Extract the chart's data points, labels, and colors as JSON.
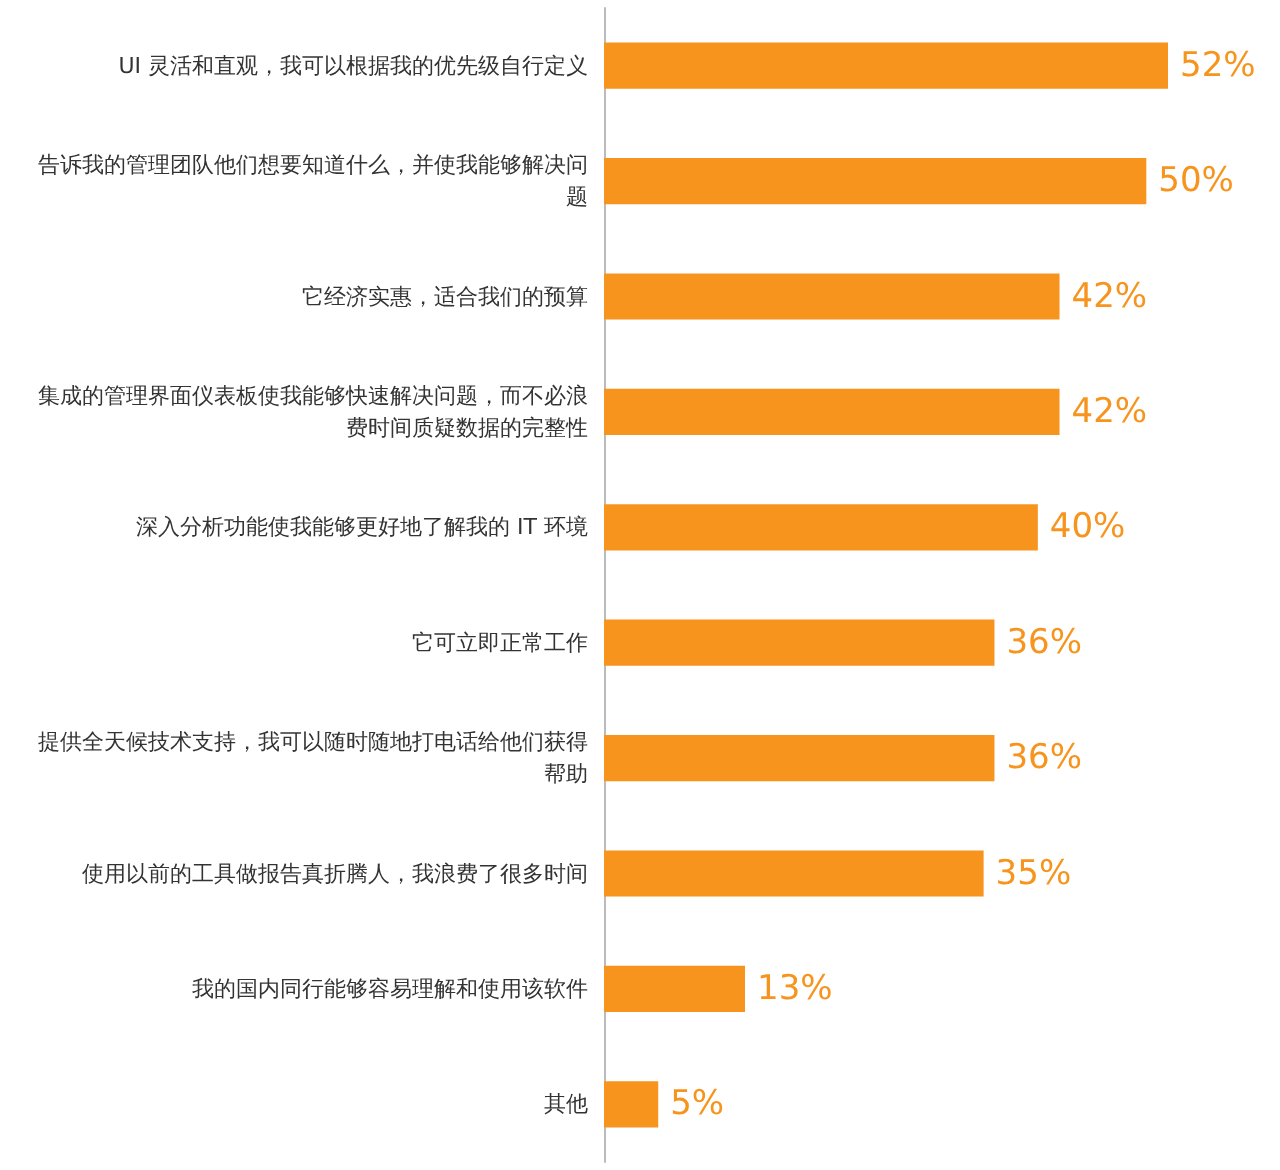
{
  "chart_data": {
    "type": "bar",
    "orientation": "horizontal",
    "categories": [
      "UI 灵活和直观，我可以根据我的优先级自行定义",
      "告诉我的管理团队他们想要知道什么，并使我能够解决问题",
      "它经济实惠，适合我们的预算",
      "集成的管理界面仪表板使我能够快速解决问题，而不必浪费时间质疑数据的完整性",
      "深入分析功能使我能够更好地了解我的 IT 环境",
      "它可立即正常工作",
      "提供全天候技术支持，我可以随时随地打电话给他们获得帮助",
      "使用以前的工具做报告真折腾人，我浪费了很多时间",
      "我的国内同行能够容易理解和使用该软件",
      "其他"
    ],
    "values": [
      52,
      50,
      42,
      42,
      40,
      36,
      36,
      35,
      13,
      5
    ],
    "value_labels": [
      "52%",
      "50%",
      "42%",
      "42%",
      "40%",
      "36%",
      "36%",
      "35%",
      "13%",
      "5%"
    ],
    "color": "#f7941d"
  }
}
